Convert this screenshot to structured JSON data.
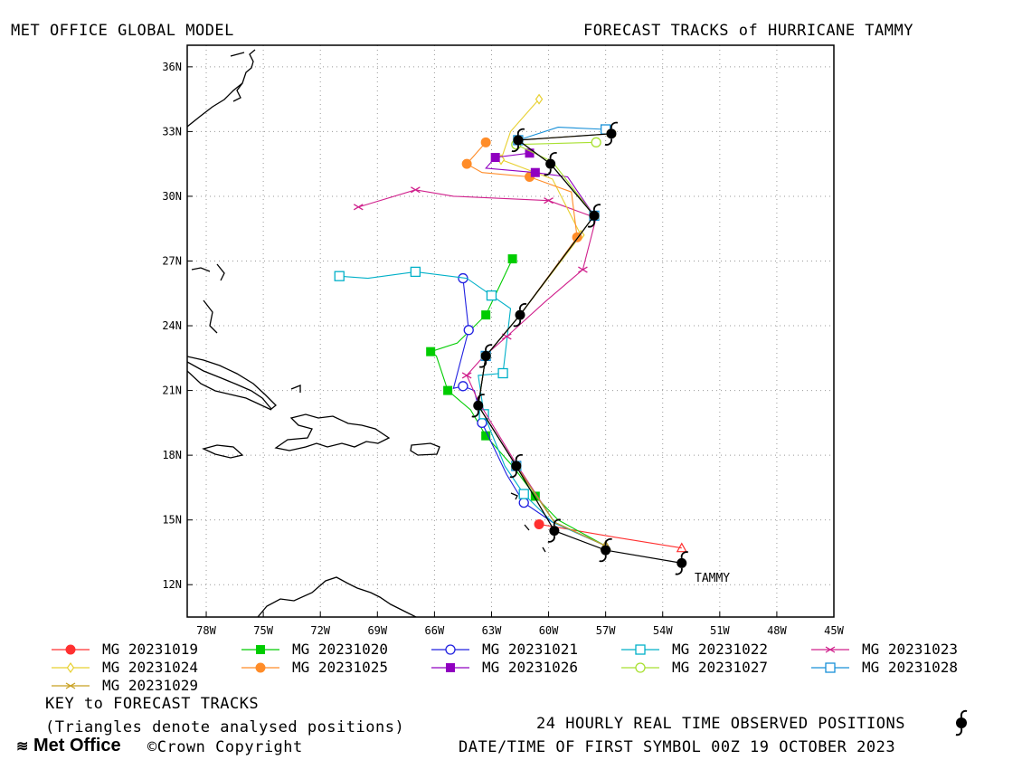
{
  "header": {
    "left_title": "MET OFFICE GLOBAL MODEL",
    "right_title": "FORECAST TRACKS of HURRICANE TAMMY"
  },
  "map": {
    "lon_ticks": [
      "78W",
      "75W",
      "72W",
      "69W",
      "66W",
      "63W",
      "60W",
      "57W",
      "54W",
      "51W",
      "48W",
      "45W"
    ],
    "lat_ticks": [
      "12N",
      "15N",
      "18N",
      "21N",
      "24N",
      "27N",
      "30N",
      "33N",
      "36N"
    ],
    "storm_label": "TAMMY",
    "lon_range": [
      -79,
      -45
    ],
    "lat_range": [
      10.5,
      37.0
    ],
    "grid": true
  },
  "tracks": [
    {
      "name": "MG 20231019",
      "color": "#ff3030",
      "marker": "filled-circle",
      "points": [
        [
          -53.0,
          13.7
        ],
        [
          -56.5,
          14.2
        ],
        [
          -60.5,
          14.8
        ]
      ]
    },
    {
      "name": "MG 20231020",
      "color": "#00cc00",
      "marker": "filled-square",
      "points": [
        [
          -57.0,
          13.8
        ],
        [
          -59.5,
          15.0
        ],
        [
          -60.7,
          16.1
        ],
        [
          -61.8,
          17.4
        ],
        [
          -63.3,
          18.9
        ],
        [
          -64.1,
          20.1
        ],
        [
          -65.3,
          21.0
        ],
        [
          -65.9,
          22.6
        ],
        [
          -66.2,
          22.8
        ],
        [
          -64.8,
          23.2
        ],
        [
          -63.3,
          24.5
        ],
        [
          -61.9,
          27.1
        ]
      ]
    },
    {
      "name": "MG 20231021",
      "color": "#2020e0",
      "marker": "open-circle",
      "points": [
        [
          -57.0,
          13.8
        ],
        [
          -59.8,
          14.9
        ],
        [
          -61.3,
          15.8
        ],
        [
          -62.2,
          17.1
        ],
        [
          -63.5,
          19.5
        ],
        [
          -63.9,
          21.0
        ],
        [
          -64.5,
          21.2
        ],
        [
          -65.0,
          21.1
        ],
        [
          -64.2,
          23.8
        ],
        [
          -64.5,
          26.2
        ]
      ]
    },
    {
      "name": "MG 20231022",
      "color": "#00b0c8",
      "marker": "open-square",
      "points": [
        [
          -57.0,
          13.8
        ],
        [
          -59.8,
          14.9
        ],
        [
          -61.3,
          16.2
        ],
        [
          -62.3,
          17.5
        ],
        [
          -63.4,
          19.9
        ],
        [
          -63.7,
          21.7
        ],
        [
          -62.4,
          21.8
        ],
        [
          -62.0,
          24.8
        ],
        [
          -63.0,
          25.4
        ],
        [
          -64.3,
          26.2
        ],
        [
          -67.0,
          26.5
        ],
        [
          -69.5,
          26.2
        ],
        [
          -71.0,
          26.3
        ]
      ]
    },
    {
      "name": "MG 20231023",
      "color": "#d0208c",
      "marker": "x",
      "points": [
        [
          -57.0,
          13.8
        ],
        [
          -59.7,
          14.9
        ],
        [
          -61.7,
          17.6
        ],
        [
          -63.7,
          20.5
        ],
        [
          -64.3,
          21.7
        ],
        [
          -63.5,
          22.5
        ],
        [
          -62.2,
          23.5
        ],
        [
          -60.2,
          25.1
        ],
        [
          -58.2,
          26.6
        ],
        [
          -57.5,
          29.0
        ],
        [
          -60.0,
          29.8
        ],
        [
          -65.0,
          30.0
        ],
        [
          -67.0,
          30.3
        ],
        [
          -70.0,
          29.5
        ]
      ]
    },
    {
      "name": "MG 20231024",
      "color": "#e8d030",
      "marker": "open-diamond",
      "points": [
        [
          -57.0,
          13.8
        ],
        [
          -59.7,
          14.9
        ],
        [
          -61.7,
          17.5
        ],
        [
          -63.7,
          20.3
        ],
        [
          -63.3,
          22.6
        ],
        [
          -61.5,
          24.5
        ],
        [
          -58.3,
          28.2
        ],
        [
          -59.8,
          30.8
        ],
        [
          -62.5,
          31.7
        ],
        [
          -62.0,
          33.0
        ],
        [
          -60.5,
          34.5
        ]
      ]
    },
    {
      "name": "MG 20231025",
      "color": "#ff8c28",
      "marker": "filled-circle",
      "points": [
        [
          -57.0,
          13.8
        ],
        [
          -59.7,
          14.9
        ],
        [
          -61.7,
          17.5
        ],
        [
          -63.7,
          20.3
        ],
        [
          -63.3,
          22.6
        ],
        [
          -61.5,
          24.5
        ],
        [
          -58.5,
          28.1
        ],
        [
          -58.8,
          30.2
        ],
        [
          -61.0,
          30.9
        ],
        [
          -63.5,
          31.1
        ],
        [
          -64.3,
          31.5
        ],
        [
          -63.3,
          32.5
        ]
      ]
    },
    {
      "name": "MG 20231026",
      "color": "#9000c0",
      "marker": "filled-square",
      "points": [
        [
          -57.0,
          13.8
        ],
        [
          -59.7,
          14.9
        ],
        [
          -61.7,
          17.5
        ],
        [
          -63.7,
          20.3
        ],
        [
          -63.3,
          22.6
        ],
        [
          -61.5,
          24.5
        ],
        [
          -57.6,
          29.1
        ],
        [
          -59.0,
          30.9
        ],
        [
          -60.7,
          31.1
        ],
        [
          -63.3,
          31.3
        ],
        [
          -62.8,
          31.8
        ],
        [
          -61.0,
          32.0
        ]
      ]
    },
    {
      "name": "MG 20231027",
      "color": "#a8e030",
      "marker": "open-circle",
      "points": [
        [
          -57.0,
          13.8
        ],
        [
          -59.7,
          14.9
        ],
        [
          -61.7,
          17.5
        ],
        [
          -63.7,
          20.3
        ],
        [
          -63.3,
          22.6
        ],
        [
          -61.5,
          24.5
        ],
        [
          -57.6,
          29.1
        ],
        [
          -59.8,
          31.6
        ],
        [
          -61.7,
          32.4
        ],
        [
          -57.5,
          32.5
        ]
      ]
    },
    {
      "name": "MG 20231028",
      "color": "#1890d8",
      "marker": "open-square",
      "points": [
        [
          -57.0,
          13.8
        ],
        [
          -59.7,
          14.9
        ],
        [
          -61.7,
          17.5
        ],
        [
          -63.7,
          20.3
        ],
        [
          -63.3,
          22.6
        ],
        [
          -61.5,
          24.5
        ],
        [
          -57.6,
          29.1
        ],
        [
          -59.9,
          31.5
        ],
        [
          -61.6,
          32.6
        ],
        [
          -59.5,
          33.2
        ],
        [
          -57.0,
          33.1
        ]
      ]
    },
    {
      "name": "MG 20231029",
      "color": "#c8a020",
      "marker": "x",
      "points": [
        [
          -57.0,
          13.8
        ],
        [
          -59.7,
          14.9
        ],
        [
          -61.7,
          17.5
        ],
        [
          -63.7,
          20.3
        ],
        [
          -63.3,
          22.6
        ],
        [
          -61.5,
          24.5
        ],
        [
          -57.6,
          29.1
        ],
        [
          -59.9,
          31.5
        ],
        [
          -61.6,
          32.6
        ],
        [
          -56.7,
          32.9
        ]
      ]
    }
  ],
  "observed": {
    "color": "#000000",
    "points": [
      [
        -53.0,
        13.0
      ],
      [
        -57.0,
        13.6
      ],
      [
        -59.7,
        14.5
      ],
      [
        -61.7,
        17.5
      ],
      [
        -63.7,
        20.3
      ],
      [
        -63.3,
        22.6
      ],
      [
        -61.5,
        24.5
      ],
      [
        -57.6,
        29.1
      ],
      [
        -59.9,
        31.5
      ],
      [
        -61.6,
        32.6
      ],
      [
        -56.7,
        32.9
      ]
    ]
  },
  "legend": {
    "key_title": "KEY to FORECAST TRACKS",
    "note": "(Triangles denote analysed positions)",
    "observed_label": "24 HOURLY REAL TIME OBSERVED POSITIONS",
    "date_line": "DATE/TIME OF FIRST SYMBOL 00Z 19 OCTOBER 2023"
  },
  "footer": {
    "logo_text": "Met Office",
    "copyright": "©Crown Copyright"
  }
}
